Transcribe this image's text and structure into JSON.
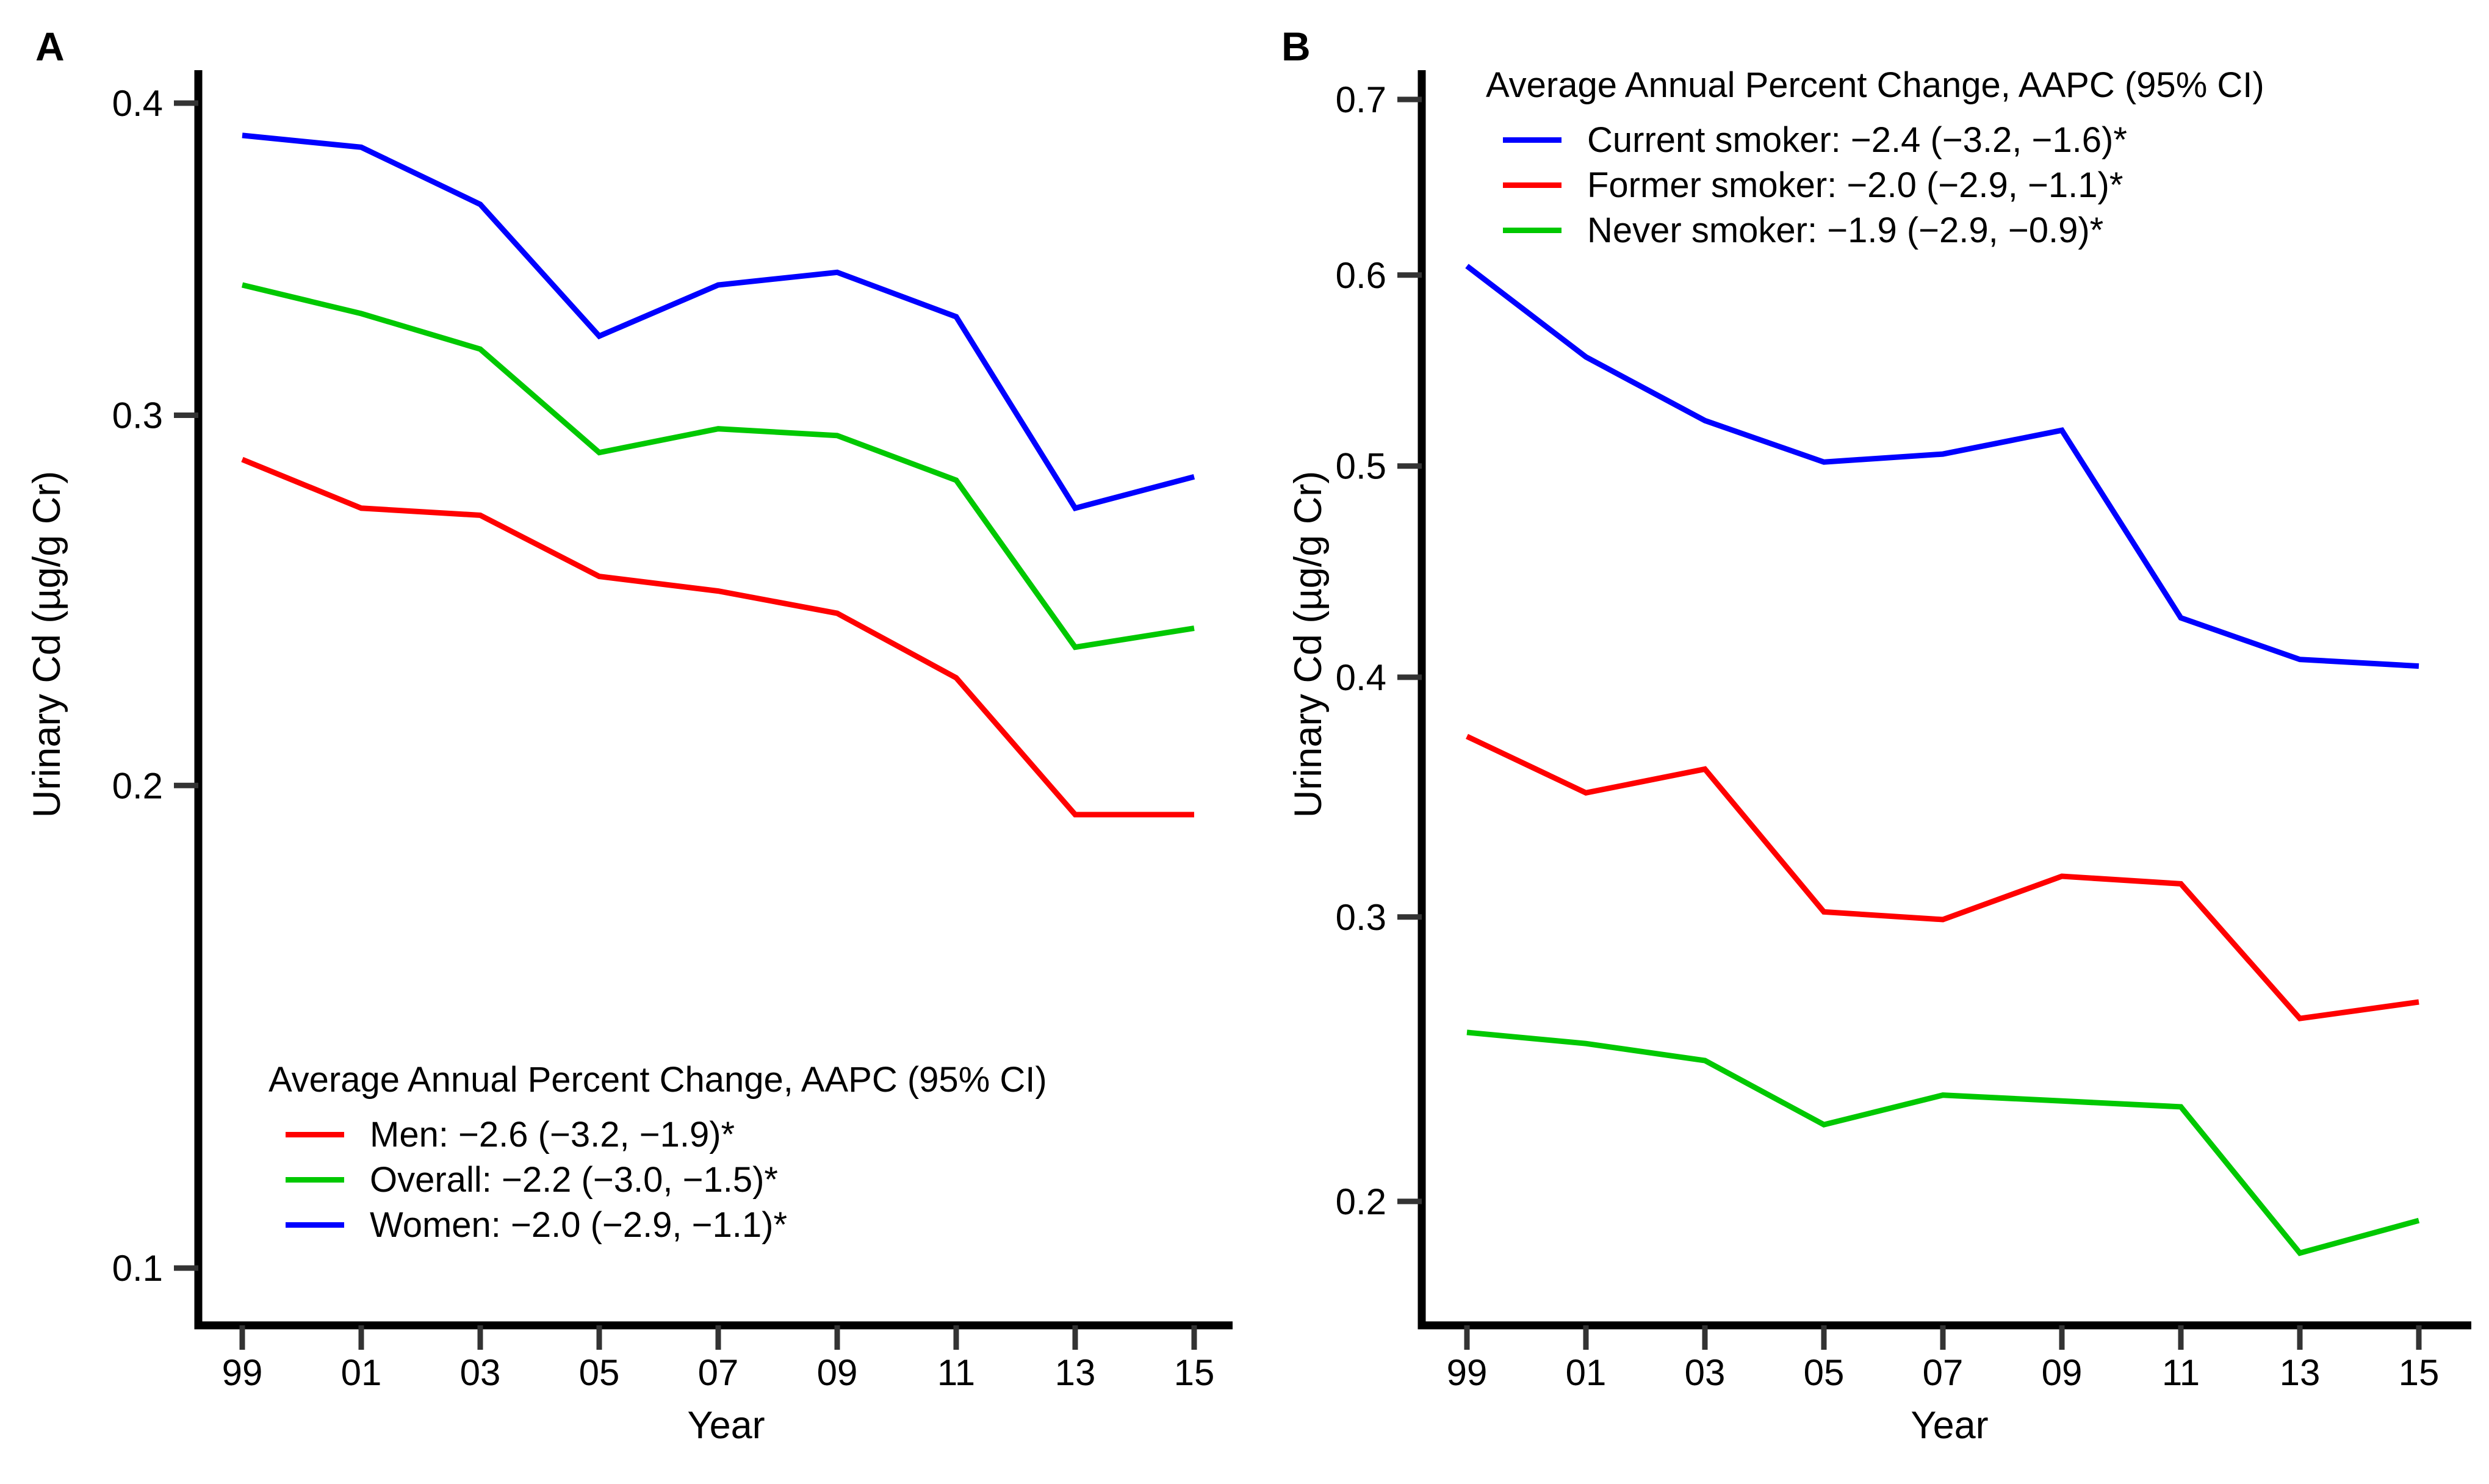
{
  "figure": {
    "background": "#ffffff",
    "text_color": "#000000",
    "panel_letters": [
      "A",
      "B"
    ]
  },
  "chart_data": [
    {
      "type": "line",
      "title": "A",
      "xlabel": "Year",
      "ylabel": "Urinary Cd (µg/g Cr)",
      "x": [
        1999,
        2001,
        2003,
        2005,
        2007,
        2009,
        2011,
        2013,
        2015
      ],
      "x_tick_labels": [
        "99",
        "01",
        "03",
        "05",
        "07",
        "09",
        "11",
        "13",
        "15"
      ],
      "y_ticks": [
        0.4,
        0.3,
        0.2,
        0.1
      ],
      "ylim": [
        0.09,
        0.41
      ],
      "yscale": "sqrt",
      "grid": false,
      "legend_position": "bottom-left",
      "legend_title": "Average Annual Percent Change, AAPC (95% CI)",
      "series": [
        {
          "name": "Men: −2.6 (−3.2, −1.9)*",
          "color": "#FF0000",
          "values": [
            0.287,
            0.273,
            0.271,
            0.254,
            0.25,
            0.244,
            0.227,
            0.193,
            0.193
          ]
        },
        {
          "name": "Overall: −2.2 (−3.0, −1.5)*",
          "color": "#00C800",
          "values": [
            0.34,
            0.331,
            0.32,
            0.289,
            0.296,
            0.294,
            0.281,
            0.235,
            0.24
          ]
        },
        {
          "name": "Women: −2.0 (−2.9, −1.1)*",
          "color": "#0000FF",
          "values": [
            0.389,
            0.385,
            0.366,
            0.324,
            0.34,
            0.344,
            0.33,
            0.273,
            0.282
          ]
        }
      ]
    },
    {
      "type": "line",
      "title": "B",
      "xlabel": "Year",
      "ylabel": "Urinary Cd (µg/g Cr)",
      "x": [
        1999,
        2001,
        2003,
        2005,
        2007,
        2009,
        2011,
        2013,
        2015
      ],
      "x_tick_labels": [
        "99",
        "01",
        "03",
        "05",
        "07",
        "09",
        "11",
        "13",
        "15"
      ],
      "y_ticks": [
        0.7,
        0.6,
        0.5,
        0.4,
        0.3,
        0.2
      ],
      "ylim": [
        0.16,
        0.72
      ],
      "yscale": "sqrt",
      "grid": false,
      "legend_position": "top-left",
      "legend_title": "Average Annual Percent Change, AAPC (95% CI)",
      "series": [
        {
          "name": "Current smoker: −2.4 (−3.2, −1.6)*",
          "color": "#0000FF",
          "values": [
            0.605,
            0.556,
            0.523,
            0.502,
            0.506,
            0.518,
            0.427,
            0.408,
            0.405
          ]
        },
        {
          "name": "Former smoker: −2.0 (−2.9, −1.1)*",
          "color": "#FF0000",
          "values": [
            0.374,
            0.35,
            0.36,
            0.302,
            0.299,
            0.316,
            0.313,
            0.262,
            0.268
          ]
        },
        {
          "name": "Never smoker: −1.9 (−2.9, −0.9)*",
          "color": "#00C800",
          "values": [
            0.257,
            0.253,
            0.247,
            0.225,
            0.235,
            0.233,
            0.231,
            0.184,
            0.194
          ]
        }
      ]
    }
  ]
}
